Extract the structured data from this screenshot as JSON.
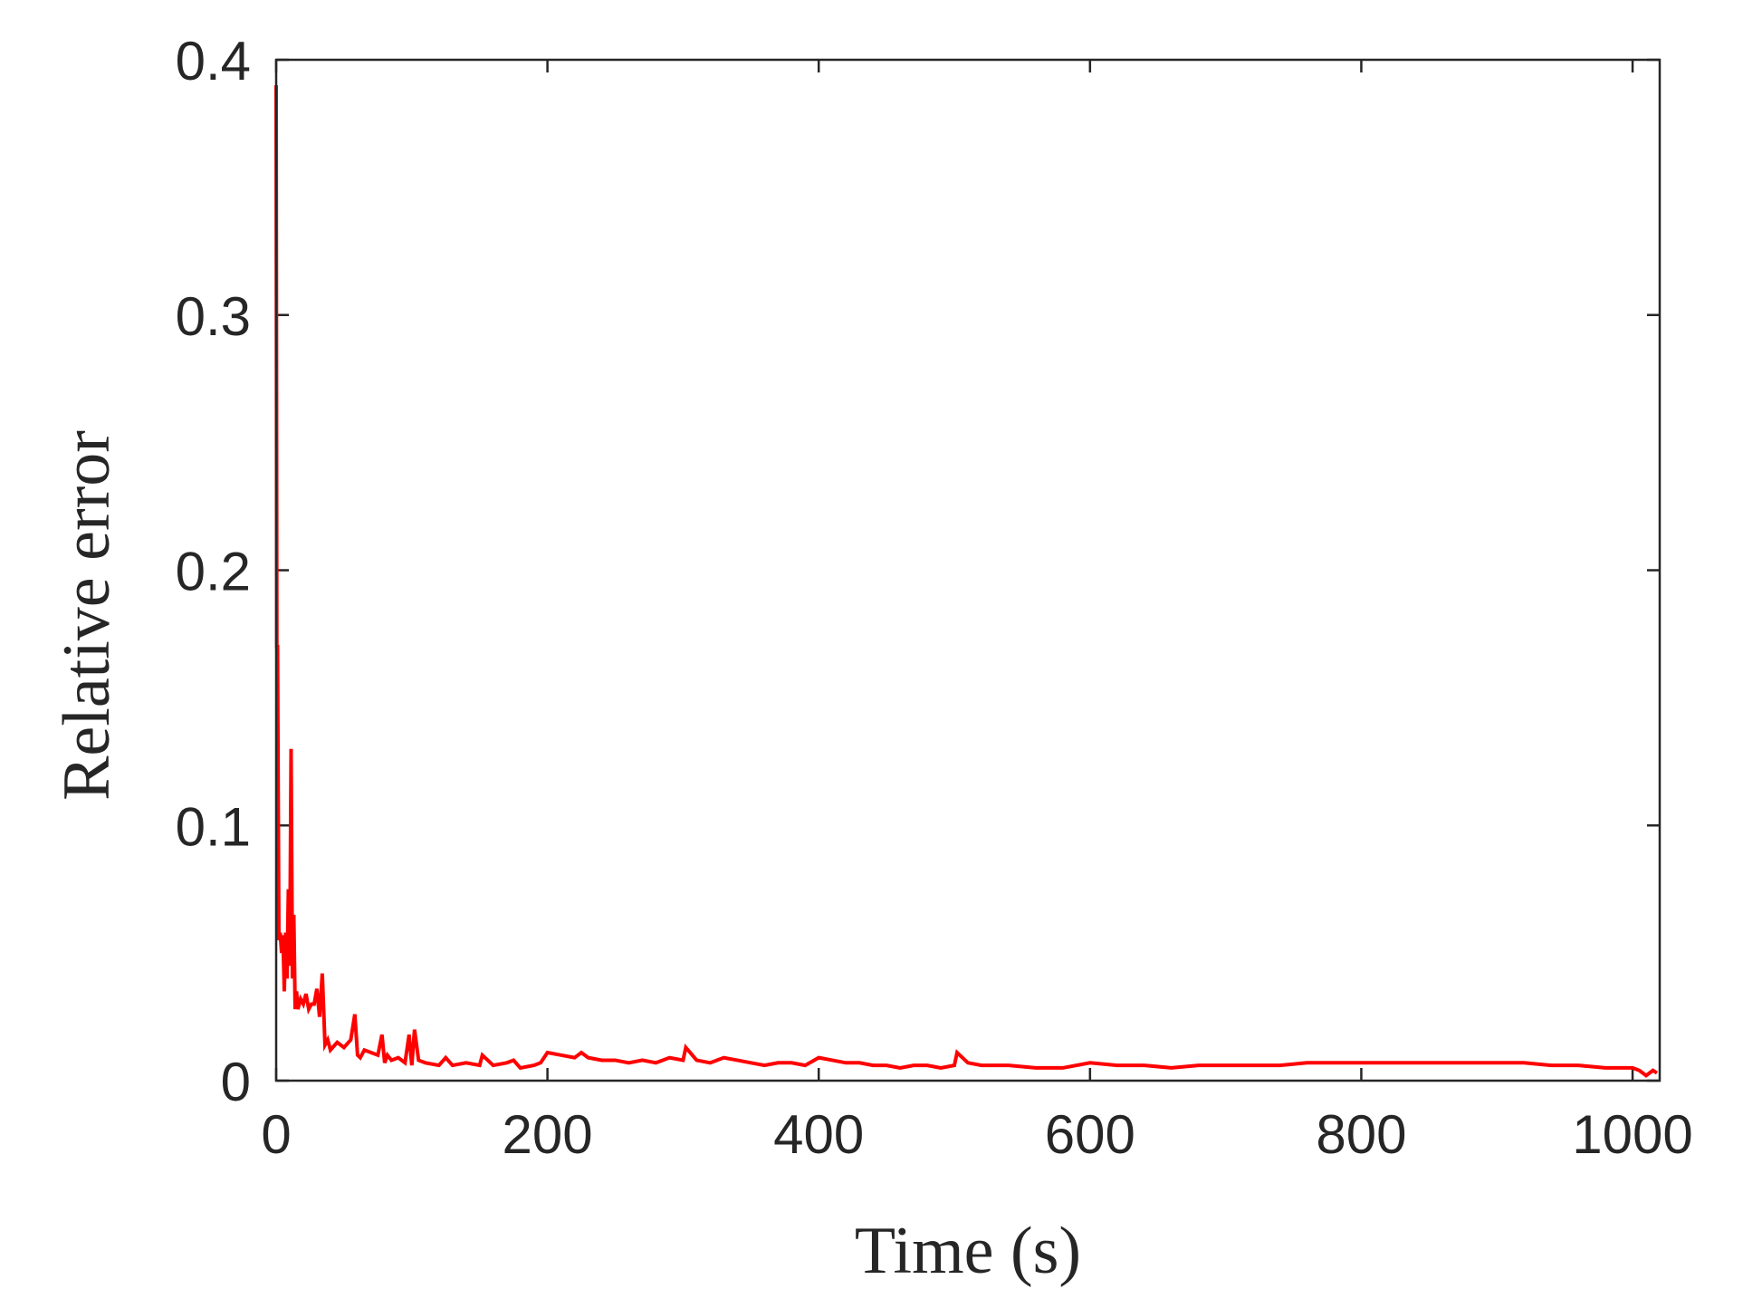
{
  "chart_data": {
    "type": "line",
    "xlabel": "Time (s)",
    "ylabel": "Relative error",
    "xlim": [
      0,
      1020
    ],
    "ylim": [
      0,
      0.4
    ],
    "xticks": [
      0,
      200,
      400,
      600,
      800,
      1000
    ],
    "xtick_labels": [
      "0",
      "200",
      "400",
      "600",
      "800",
      "1000"
    ],
    "yticks": [
      0,
      0.1,
      0.2,
      0.3,
      0.4
    ],
    "ytick_labels": [
      "0",
      "0.1",
      "0.2",
      "0.3",
      "0.4"
    ],
    "grid": false,
    "box": true,
    "series": [
      {
        "color": "#ff0000",
        "x": [
          0,
          0.5,
          1,
          2,
          3,
          4,
          5,
          6,
          7,
          8,
          9,
          10,
          11,
          12,
          13,
          14,
          15,
          16,
          18,
          20,
          22,
          24,
          26,
          28,
          30,
          32,
          34,
          36,
          38,
          40,
          45,
          50,
          55,
          58,
          60,
          62,
          65,
          70,
          75,
          78,
          80,
          82,
          85,
          90,
          95,
          98,
          100,
          102,
          105,
          110,
          120,
          125,
          130,
          140,
          150,
          152,
          160,
          170,
          175,
          180,
          190,
          195,
          200,
          210,
          220,
          225,
          230,
          240,
          250,
          260,
          270,
          280,
          290,
          300,
          302,
          310,
          320,
          330,
          340,
          350,
          360,
          370,
          380,
          390,
          400,
          410,
          420,
          430,
          440,
          450,
          460,
          470,
          480,
          490,
          500,
          502,
          510,
          520,
          540,
          560,
          580,
          600,
          620,
          640,
          660,
          680,
          700,
          720,
          740,
          760,
          780,
          800,
          820,
          840,
          860,
          880,
          900,
          920,
          940,
          960,
          980,
          1000,
          1005,
          1010,
          1015,
          1018
        ],
        "y": [
          0.39,
          0.17,
          0.17,
          0.055,
          0.058,
          0.05,
          0.057,
          0.035,
          0.058,
          0.04,
          0.075,
          0.045,
          0.13,
          0.04,
          0.065,
          0.028,
          0.035,
          0.028,
          0.032,
          0.03,
          0.034,
          0.028,
          0.03,
          0.03,
          0.036,
          0.025,
          0.042,
          0.014,
          0.016,
          0.012,
          0.015,
          0.013,
          0.016,
          0.026,
          0.01,
          0.009,
          0.012,
          0.011,
          0.01,
          0.018,
          0.007,
          0.01,
          0.008,
          0.009,
          0.007,
          0.018,
          0.006,
          0.02,
          0.008,
          0.007,
          0.006,
          0.009,
          0.006,
          0.007,
          0.006,
          0.01,
          0.006,
          0.007,
          0.008,
          0.005,
          0.006,
          0.007,
          0.011,
          0.01,
          0.009,
          0.011,
          0.009,
          0.008,
          0.008,
          0.007,
          0.008,
          0.007,
          0.009,
          0.008,
          0.013,
          0.008,
          0.007,
          0.009,
          0.008,
          0.007,
          0.006,
          0.007,
          0.007,
          0.006,
          0.009,
          0.008,
          0.007,
          0.007,
          0.006,
          0.006,
          0.005,
          0.006,
          0.006,
          0.005,
          0.006,
          0.011,
          0.007,
          0.006,
          0.006,
          0.005,
          0.005,
          0.007,
          0.006,
          0.006,
          0.005,
          0.006,
          0.006,
          0.006,
          0.006,
          0.007,
          0.007,
          0.007,
          0.007,
          0.007,
          0.007,
          0.007,
          0.007,
          0.007,
          0.006,
          0.006,
          0.005,
          0.005,
          0.004,
          0.002,
          0.004,
          0.003
        ]
      }
    ]
  }
}
